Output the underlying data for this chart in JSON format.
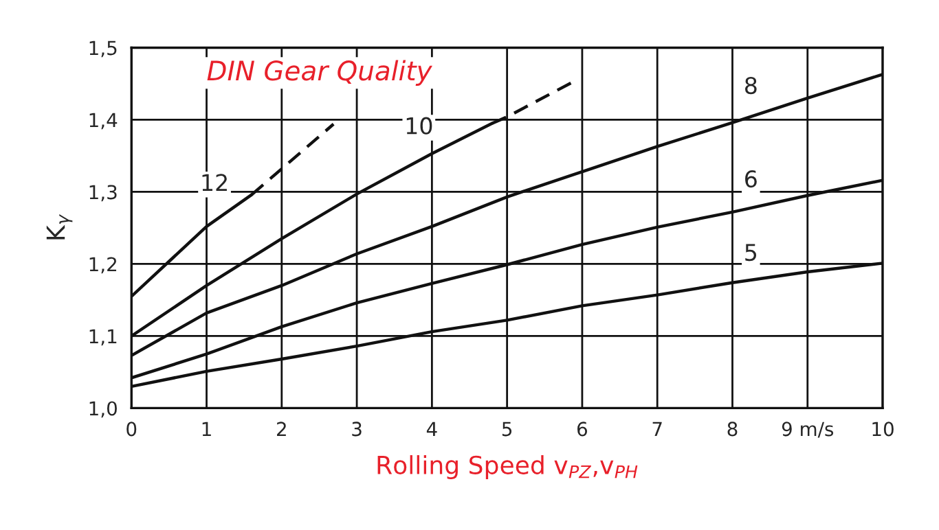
{
  "chart_data": {
    "type": "line",
    "title": "DIN Gear Quality",
    "xlabel": "Rolling Speed v$_{PZ}$,v$_{PH}$",
    "ylabel": "K$_{γ}$",
    "series": [
      {
        "name": "12",
        "color": "#111111",
        "line_style": "solid",
        "x": [
          0,
          1,
          1.6
        ],
        "values": [
          1.155,
          1.252,
          1.296
        ]
      },
      {
        "color": "#111111",
        "line_style": "dashed",
        "x": [
          1.6,
          2.69
        ],
        "values": [
          1.296,
          1.394
        ]
      },
      {
        "name": "10",
        "color": "#111111",
        "line_style": "solid",
        "x": [
          0,
          1,
          2,
          3,
          4,
          4.8
        ],
        "values": [
          1.1,
          1.17,
          1.235,
          1.297,
          1.353,
          1.395
        ]
      },
      {
        "color": "#111111",
        "line_style": "dashed",
        "x": [
          4.8,
          5,
          5.94
        ],
        "values": [
          1.395,
          1.404,
          1.456
        ]
      },
      {
        "name": "8",
        "color": "#111111",
        "line_style": "solid",
        "x": [
          0,
          1,
          2,
          3,
          4,
          5,
          6,
          7,
          8,
          9,
          10
        ],
        "values": [
          1.073,
          1.132,
          1.17,
          1.214,
          1.252,
          1.293,
          1.328,
          1.363,
          1.396,
          1.43,
          1.463
        ]
      },
      {
        "name": "6",
        "color": "#111111",
        "line_style": "solid",
        "x": [
          0,
          1,
          2,
          3,
          4,
          5,
          6,
          7,
          8,
          9,
          10
        ],
        "values": [
          1.042,
          1.075,
          1.113,
          1.146,
          1.173,
          1.199,
          1.227,
          1.251,
          1.272,
          1.295,
          1.316
        ]
      },
      {
        "name": "5",
        "color": "#111111",
        "line_style": "solid",
        "x": [
          0,
          1,
          2,
          3,
          4,
          5,
          6,
          7,
          8,
          9,
          10
        ],
        "values": [
          1.03,
          1.051,
          1.068,
          1.086,
          1.106,
          1.122,
          1.142,
          1.157,
          1.174,
          1.189,
          1.201
        ]
      }
    ],
    "xlim": [
      0,
      10
    ],
    "ylim": [
      1.0,
      1.5
    ],
    "xticks": [
      0,
      1,
      2,
      3,
      4,
      5,
      6,
      7,
      8,
      {
        "value": 9,
        "label": "9 m/s"
      },
      10
    ],
    "yticks": [
      {
        "value": 1.0,
        "label": "1,0"
      },
      {
        "value": 1.1,
        "label": "1,1"
      },
      {
        "value": 1.2,
        "label": "1,2"
      },
      {
        "value": 1.3,
        "label": "1,3"
      },
      {
        "value": 1.4,
        "label": "1,4"
      },
      {
        "value": 1.5,
        "label": "1,5"
      }
    ],
    "grid": true,
    "legend": false
  }
}
